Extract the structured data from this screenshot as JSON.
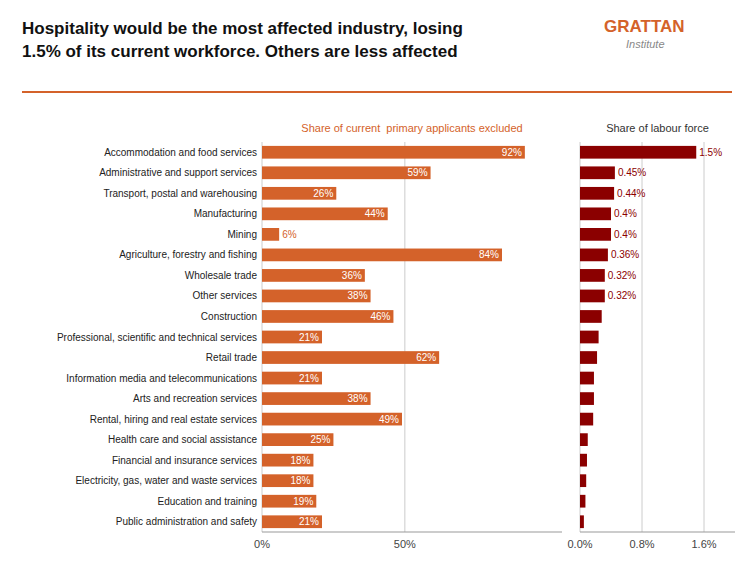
{
  "title": [
    "Hospitality would be the most affected industry, losing",
    "1.5% of its current workforce. Others are less affected"
  ],
  "annotations": [
    "GRATTAN",
    "Institute"
  ],
  "chart_data": [
    {
      "type": "bar",
      "orientation": "horizontal",
      "title": "Share of current  primary applicants excluded",
      "categories": [
        "Accommodation and food services",
        "Administrative and support services",
        "Transport, postal and warehousing",
        "Manufacturing",
        "Mining",
        "Agriculture, forestry and fishing",
        "Wholesale trade",
        "Other services",
        "Construction",
        "Professional, scientific and technical services",
        "Retail trade",
        "Information media and telecommunications",
        "Arts and recreation services",
        "Rental, hiring and real estate services",
        "Health care and social assistance",
        "Financial and insurance services",
        "Electricity, gas, water and waste services",
        "Education and training",
        "Public administration and safety"
      ],
      "values": [
        92,
        59,
        26,
        44,
        6,
        84,
        36,
        38,
        46,
        21,
        62,
        21,
        38,
        49,
        25,
        18,
        18,
        19,
        21
      ],
      "value_labels": [
        "92%",
        "59%",
        "26%",
        "44%",
        "6%",
        "84%",
        "36%",
        "38%",
        "46%",
        "21%",
        "62%",
        "21%",
        "38%",
        "49%",
        "25%",
        "18%",
        "18%",
        "19%",
        "21%"
      ],
      "color": "#D4622A",
      "xlim": [
        0,
        105
      ],
      "xticks": [
        {
          "value": 0,
          "label": "0%"
        },
        {
          "value": 50,
          "label": "50%"
        }
      ],
      "grid": true,
      "data_labels": true
    },
    {
      "type": "bar",
      "orientation": "horizontal",
      "title": "Share of labour force",
      "values": [
        1.5,
        0.45,
        0.44,
        0.4,
        0.4,
        0.36,
        0.32,
        0.32,
        0.28,
        0.24,
        0.22,
        0.18,
        0.18,
        0.17,
        0.1,
        0.09,
        0.08,
        0.07,
        0.05
      ],
      "value_labels": [
        "1.5%",
        "0.45%",
        "0.44%",
        "0.4%",
        "0.4%",
        "0.36%",
        "0.32%",
        "0.32%",
        null,
        null,
        null,
        null,
        null,
        null,
        null,
        null,
        null,
        null,
        null
      ],
      "color": "#8B0000",
      "xlim": [
        0,
        2.0
      ],
      "xticks": [
        {
          "value": 0,
          "label": "0.0%"
        },
        {
          "value": 0.8,
          "label": "0.8%"
        },
        {
          "value": 1.6,
          "label": "1.6%"
        }
      ],
      "grid": true,
      "data_labels": true
    }
  ]
}
